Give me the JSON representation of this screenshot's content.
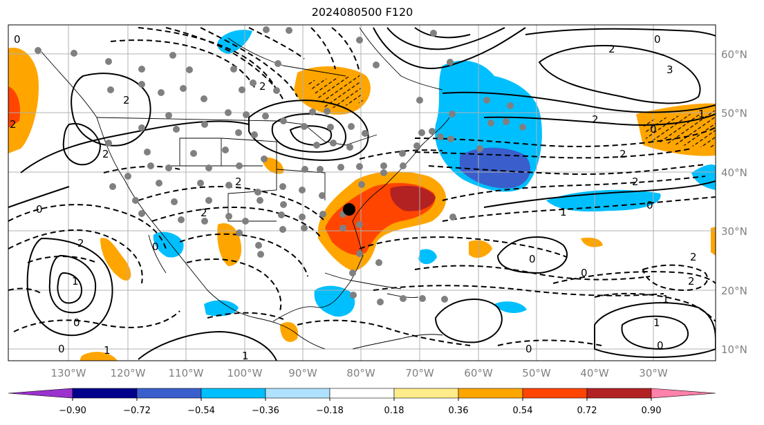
{
  "title": "2024080500 F120",
  "lat_labels": [
    "60°N",
    "50°N",
    "40°N",
    "30°N",
    "20°N",
    "10°N"
  ],
  "lon_labels": [
    "130°W",
    "120°W",
    "110°W",
    "100°W",
    "90°W",
    "80°W",
    "70°W",
    "60°W",
    "50°W",
    "40°W",
    "30°W"
  ],
  "colorbar": {
    "ticks": [
      "−0.90",
      "−0.72",
      "−0.54",
      "−0.36",
      "−0.18",
      "0.18",
      "0.36",
      "0.54",
      "0.72",
      "0.90"
    ],
    "colors": [
      "#9a32cd",
      "#00008b",
      "#3a5fcd",
      "#00bfff",
      "#b0e2ff",
      "#ffffff",
      "#ffec8b",
      "#ffa500",
      "#ff4500",
      "#b22222",
      "#ff82ab"
    ]
  },
  "contour_labels": [
    "2",
    "2",
    "1",
    "0",
    "0",
    "2",
    "3",
    "2",
    "2",
    "0",
    "1",
    "0",
    "1",
    "1",
    "2",
    "2",
    "2",
    "0",
    "0",
    "0",
    "0",
    "0",
    "1",
    "2",
    "2",
    "2",
    "0",
    "0",
    "2",
    "1",
    "0",
    "2",
    "1"
  ],
  "colors": {
    "orange": "#ffa500",
    "red_orange": "#ff4500",
    "dark_red": "#b22222",
    "deep_sky_blue": "#00bfff",
    "royal_blue": "#3a5fcd",
    "grid": "#a0a0a0",
    "station_dot": "#808080"
  }
}
